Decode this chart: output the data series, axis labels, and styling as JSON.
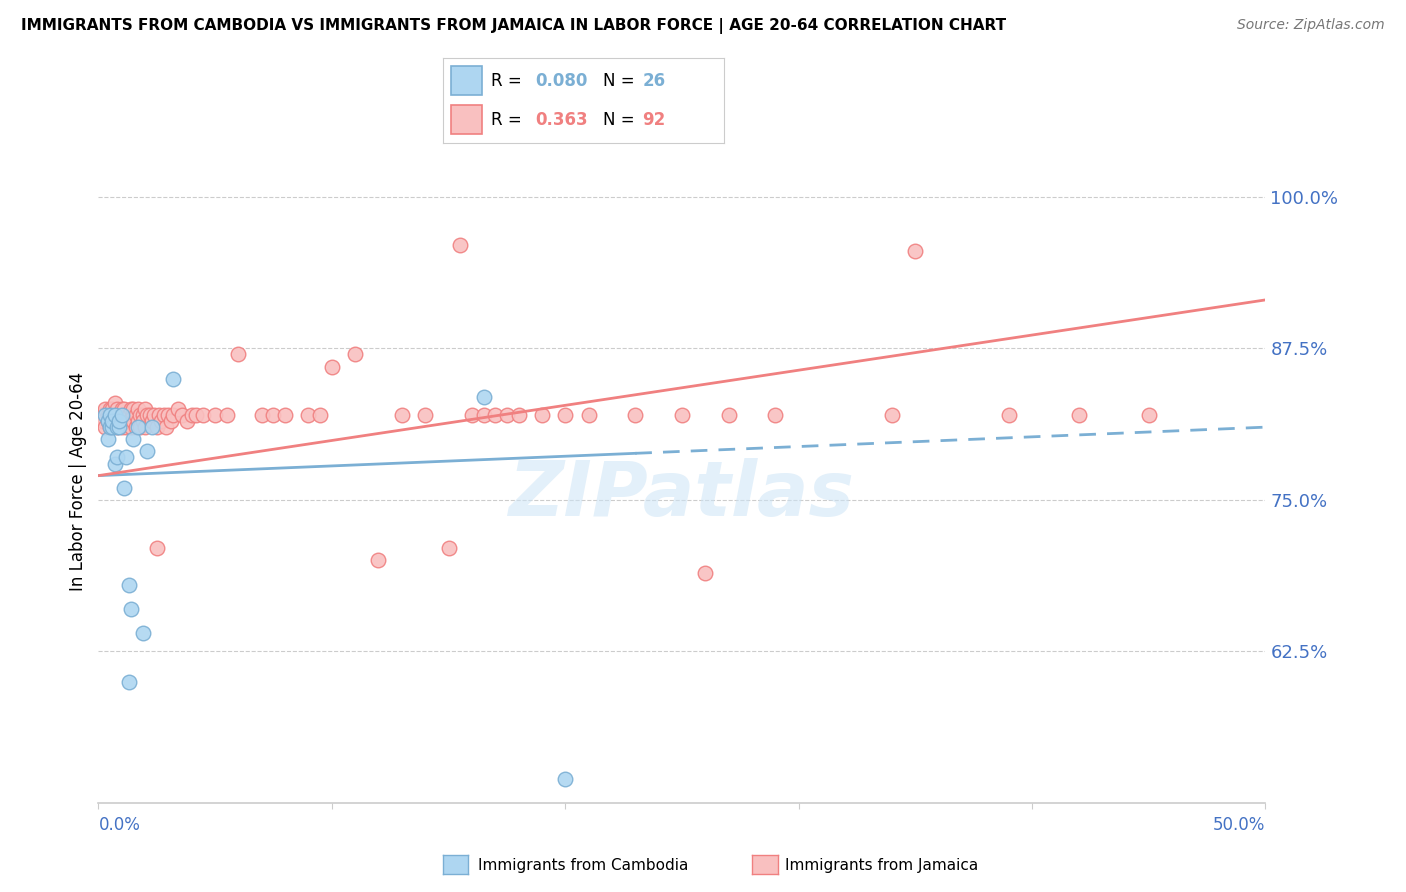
{
  "title": "IMMIGRANTS FROM CAMBODIA VS IMMIGRANTS FROM JAMAICA IN LABOR FORCE | AGE 20-64 CORRELATION CHART",
  "source": "Source: ZipAtlas.com",
  "ylabel": "In Labor Force | Age 20-64",
  "ytick_labels": [
    "100.0%",
    "87.5%",
    "75.0%",
    "62.5%"
  ],
  "ytick_values": [
    1.0,
    0.875,
    0.75,
    0.625
  ],
  "xlim": [
    0.0,
    0.5
  ],
  "ylim": [
    0.5,
    1.03
  ],
  "watermark": "ZIPatlas",
  "cambodia_color": "#7bafd4",
  "cambodia_color_fill": "#aed6f1",
  "jamaica_color": "#f08080",
  "jamaica_color_fill": "#f9c0c0",
  "legend_cambodia_R": "0.080",
  "legend_cambodia_N": "26",
  "legend_jamaica_R": "0.363",
  "legend_jamaica_N": "92",
  "cambodia_x": [
    0.003,
    0.004,
    0.004,
    0.005,
    0.005,
    0.006,
    0.006,
    0.007,
    0.007,
    0.008,
    0.008,
    0.009,
    0.009,
    0.01,
    0.011,
    0.012,
    0.013,
    0.014,
    0.015,
    0.017,
    0.019,
    0.021,
    0.023,
    0.032,
    0.165,
    0.2
  ],
  "cambodia_y": [
    0.82,
    0.815,
    0.8,
    0.81,
    0.82,
    0.81,
    0.815,
    0.82,
    0.78,
    0.81,
    0.785,
    0.81,
    0.815,
    0.82,
    0.76,
    0.785,
    0.68,
    0.66,
    0.8,
    0.81,
    0.64,
    0.79,
    0.81,
    0.85,
    0.835,
    0.52
  ],
  "jamaica_x": [
    0.001,
    0.002,
    0.002,
    0.003,
    0.003,
    0.004,
    0.004,
    0.005,
    0.005,
    0.006,
    0.006,
    0.006,
    0.007,
    0.007,
    0.007,
    0.008,
    0.008,
    0.008,
    0.009,
    0.009,
    0.01,
    0.01,
    0.01,
    0.011,
    0.011,
    0.012,
    0.012,
    0.013,
    0.013,
    0.014,
    0.014,
    0.015,
    0.015,
    0.015,
    0.016,
    0.016,
    0.017,
    0.017,
    0.018,
    0.018,
    0.019,
    0.019,
    0.02,
    0.02,
    0.021,
    0.022,
    0.023,
    0.024,
    0.025,
    0.026,
    0.027,
    0.028,
    0.029,
    0.03,
    0.031,
    0.032,
    0.034,
    0.036,
    0.038,
    0.04,
    0.042,
    0.045,
    0.05,
    0.055,
    0.06,
    0.07,
    0.075,
    0.08,
    0.09,
    0.095,
    0.1,
    0.11,
    0.13,
    0.14,
    0.15,
    0.155,
    0.16,
    0.165,
    0.17,
    0.175,
    0.18,
    0.19,
    0.2,
    0.21,
    0.23,
    0.25,
    0.27,
    0.29,
    0.34,
    0.39,
    0.42,
    0.45
  ],
  "jamaica_y": [
    0.82,
    0.82,
    0.815,
    0.825,
    0.81,
    0.82,
    0.815,
    0.825,
    0.81,
    0.82,
    0.825,
    0.81,
    0.82,
    0.815,
    0.83,
    0.82,
    0.81,
    0.825,
    0.815,
    0.82,
    0.825,
    0.81,
    0.82,
    0.815,
    0.825,
    0.82,
    0.81,
    0.82,
    0.815,
    0.825,
    0.81,
    0.82,
    0.815,
    0.825,
    0.81,
    0.82,
    0.815,
    0.825,
    0.82,
    0.81,
    0.82,
    0.815,
    0.825,
    0.81,
    0.82,
    0.82,
    0.815,
    0.82,
    0.81,
    0.82,
    0.815,
    0.82,
    0.81,
    0.82,
    0.815,
    0.82,
    0.825,
    0.82,
    0.815,
    0.82,
    0.82,
    0.82,
    0.82,
    0.82,
    0.87,
    0.82,
    0.82,
    0.82,
    0.82,
    0.82,
    0.86,
    0.87,
    0.82,
    0.82,
    0.71,
    0.96,
    0.82,
    0.82,
    0.82,
    0.82,
    0.82,
    0.82,
    0.82,
    0.82,
    0.82,
    0.82,
    0.82,
    0.82,
    0.82,
    0.82,
    0.82,
    0.82
  ],
  "cam_trend_x0": 0.0,
  "cam_trend_x1": 0.5,
  "cam_trend_y0": 0.77,
  "cam_trend_y1": 0.81,
  "cam_trend_solid_end": 0.23,
  "jam_trend_x0": 0.0,
  "jam_trend_x1": 0.5,
  "jam_trend_y0": 0.77,
  "jam_trend_y1": 0.915,
  "grid_color": "#cccccc",
  "axis_color": "#4472c4",
  "background_color": "#ffffff"
}
